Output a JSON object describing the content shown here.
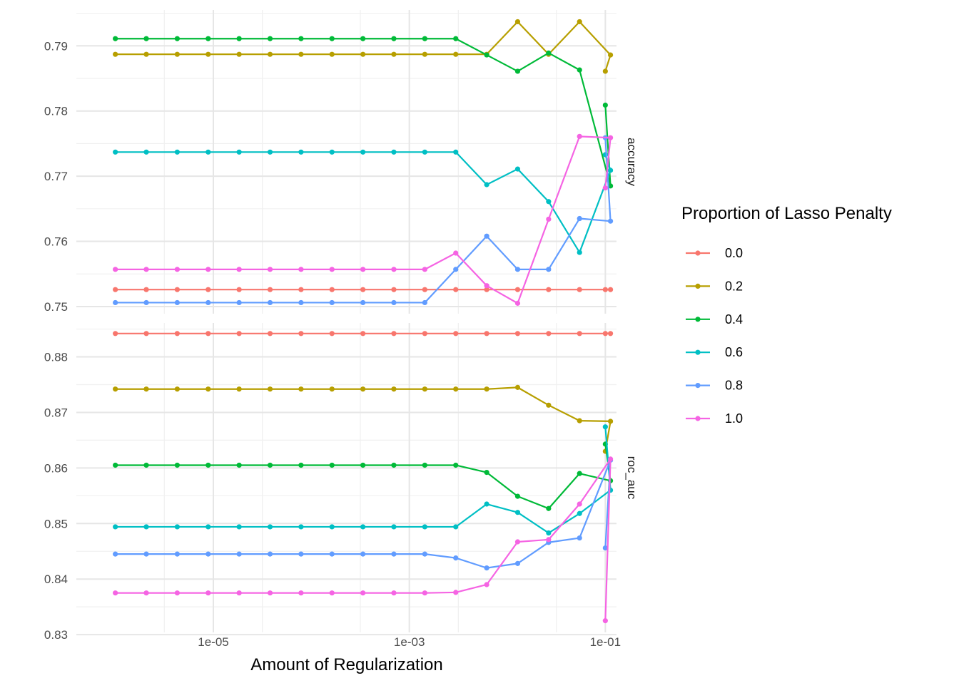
{
  "chart_data": {
    "type": "line",
    "xlabel": "Amount of Regularization",
    "ylabel": "",
    "x_scale": "log10",
    "x": [
      1e-06,
      2.069e-06,
      4.281e-06,
      8.859e-06,
      1.833e-05,
      3.793e-05,
      7.848e-05,
      0.0001624,
      0.000336,
      0.000695,
      0.001438,
      0.002976,
      0.006158,
      0.01274,
      0.02637,
      0.05456,
      0.1129,
      0.1
    ],
    "x_ticks": [
      1e-05,
      0.001,
      0.1
    ],
    "x_tick_labels": [
      "1e-05",
      "1e-03",
      "1e-01"
    ],
    "x_range": [
      4e-07,
      0.13
    ],
    "legend": {
      "title": "Proportion of Lasso Penalty",
      "placement": "right"
    },
    "series_meta": [
      {
        "name": "0.0",
        "color": "#F8766D"
      },
      {
        "name": "0.2",
        "color": "#B79F00"
      },
      {
        "name": "0.4",
        "color": "#00BA38"
      },
      {
        "name": "0.6",
        "color": "#00BFC4"
      },
      {
        "name": "0.8",
        "color": "#619CFF"
      },
      {
        "name": "1.0",
        "color": "#F564E3"
      }
    ],
    "facets": [
      {
        "strip": "accuracy",
        "ylim": [
          0.7489,
          0.7955
        ],
        "y_ticks": [
          0.75,
          0.76,
          0.77,
          0.78,
          0.79
        ],
        "y_tick_labels": [
          "0.75",
          "0.76",
          "0.77",
          "0.78",
          "0.79"
        ],
        "series": [
          {
            "name": "0.0",
            "values": [
              0.7526,
              0.7526,
              0.7526,
              0.7526,
              0.7526,
              0.7526,
              0.7526,
              0.7526,
              0.7526,
              0.7526,
              0.7526,
              0.7526,
              0.7526,
              0.7526,
              0.7526,
              0.7526,
              0.7526,
              0.7526
            ]
          },
          {
            "name": "0.2",
            "values": [
              0.7887,
              0.7887,
              0.7887,
              0.7887,
              0.7887,
              0.7887,
              0.7887,
              0.7887,
              0.7887,
              0.7887,
              0.7887,
              0.7887,
              0.7887,
              0.7937,
              0.7887,
              0.7937,
              0.7886,
              0.7861
            ]
          },
          {
            "name": "0.4",
            "values": [
              0.7911,
              0.7911,
              0.7911,
              0.7911,
              0.7911,
              0.7911,
              0.7911,
              0.7911,
              0.7911,
              0.7911,
              0.7911,
              0.7911,
              0.7886,
              0.7861,
              0.7889,
              0.7863,
              0.7685,
              0.7809
            ]
          },
          {
            "name": "0.6",
            "values": [
              0.7737,
              0.7737,
              0.7737,
              0.7737,
              0.7737,
              0.7737,
              0.7737,
              0.7737,
              0.7737,
              0.7737,
              0.7737,
              0.7737,
              0.7687,
              0.7711,
              0.7661,
              0.7583,
              0.7709,
              0.7733
            ]
          },
          {
            "name": "0.8",
            "values": [
              0.7506,
              0.7506,
              0.7506,
              0.7506,
              0.7506,
              0.7506,
              0.7506,
              0.7506,
              0.7506,
              0.7506,
              0.7506,
              0.7557,
              0.7608,
              0.7557,
              0.7557,
              0.7635,
              0.7631,
              0.7759
            ]
          },
          {
            "name": "1.0",
            "values": [
              0.7557,
              0.7557,
              0.7557,
              0.7557,
              0.7557,
              0.7557,
              0.7557,
              0.7557,
              0.7557,
              0.7557,
              0.7557,
              0.7582,
              0.7532,
              0.7505,
              0.7634,
              0.7761,
              0.7759,
              0.7682
            ]
          }
        ]
      },
      {
        "strip": "roc_auc",
        "ylim": [
          0.8304,
          0.8861
        ],
        "y_ticks": [
          0.83,
          0.84,
          0.85,
          0.86,
          0.87,
          0.88
        ],
        "y_tick_labels": [
          "0.83",
          "0.84",
          "0.85",
          "0.86",
          "0.87",
          "0.88"
        ],
        "series": [
          {
            "name": "0.0",
            "values": [
              0.8842,
              0.8842,
              0.8842,
              0.8842,
              0.8842,
              0.8842,
              0.8842,
              0.8842,
              0.8842,
              0.8842,
              0.8842,
              0.8842,
              0.8842,
              0.8842,
              0.8842,
              0.8842,
              0.8842,
              0.8842
            ]
          },
          {
            "name": "0.2",
            "values": [
              0.8742,
              0.8742,
              0.8742,
              0.8742,
              0.8742,
              0.8742,
              0.8742,
              0.8742,
              0.8742,
              0.8742,
              0.8742,
              0.8742,
              0.8742,
              0.8745,
              0.8713,
              0.8685,
              0.8684,
              0.863
            ]
          },
          {
            "name": "0.4",
            "values": [
              0.8605,
              0.8605,
              0.8605,
              0.8605,
              0.8605,
              0.8605,
              0.8605,
              0.8605,
              0.8605,
              0.8605,
              0.8605,
              0.8605,
              0.8592,
              0.8549,
              0.8527,
              0.859,
              0.8577,
              0.8643
            ]
          },
          {
            "name": "0.6",
            "values": [
              0.8494,
              0.8494,
              0.8494,
              0.8494,
              0.8494,
              0.8494,
              0.8494,
              0.8494,
              0.8494,
              0.8494,
              0.8494,
              0.8494,
              0.8535,
              0.852,
              0.8483,
              0.8518,
              0.856,
              0.8674
            ]
          },
          {
            "name": "0.8",
            "values": [
              0.8445,
              0.8445,
              0.8445,
              0.8445,
              0.8445,
              0.8445,
              0.8445,
              0.8445,
              0.8445,
              0.8445,
              0.8445,
              0.8438,
              0.842,
              0.8428,
              0.8466,
              0.8474,
              0.8614,
              0.8456
            ]
          },
          {
            "name": "1.0",
            "values": [
              0.8375,
              0.8375,
              0.8375,
              0.8375,
              0.8375,
              0.8375,
              0.8375,
              0.8375,
              0.8375,
              0.8375,
              0.8375,
              0.8376,
              0.839,
              0.8467,
              0.8471,
              0.8535,
              0.8616,
              0.8325
            ]
          }
        ]
      }
    ]
  }
}
